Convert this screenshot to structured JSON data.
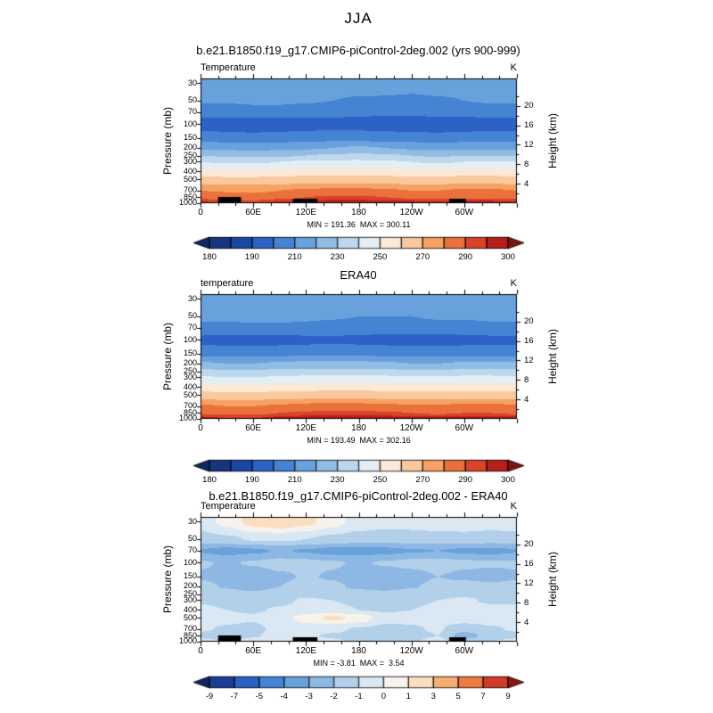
{
  "main_title": "JJA",
  "chart_data": [
    {
      "type": "heatmap",
      "title": "b.e21.B1850.f19_g17.CMIP6-piControl-2deg.002 (yrs 900-999)",
      "field_label": "Temperature",
      "units": "K",
      "ylabel_left": "Pressure (mb)",
      "ylabel_right": "Height (km)",
      "min": 191.36,
      "max": 300.11,
      "min_max_label": "MIN = 191.36  MAX = 300.11",
      "y_axis_range_mb": [
        1000,
        30
      ],
      "pressure_ticks_mb": [
        30,
        50,
        70,
        100,
        150,
        200,
        250,
        300,
        400,
        500,
        700,
        850,
        1000
      ],
      "height_ticks_km": [
        20,
        16,
        12,
        8,
        4
      ],
      "lon_tick_labels": [
        {
          "deg": 0,
          "label": "0"
        },
        {
          "deg": 60,
          "label": "60E"
        },
        {
          "deg": 120,
          "label": "120E"
        },
        {
          "deg": 180,
          "label": "180"
        },
        {
          "deg": 240,
          "label": "120W"
        },
        {
          "deg": 300,
          "label": "60W"
        }
      ],
      "colorbar": {
        "levels": [
          180,
          185,
          190,
          200,
          210,
          220,
          230,
          240,
          250,
          260,
          270,
          280,
          290,
          295,
          300
        ],
        "colors": [
          "#10265f",
          "#16357f",
          "#1c46a5",
          "#2c62c5",
          "#4583d3",
          "#68a1dc",
          "#92bce4",
          "#bdd7ec",
          "#e3eef5",
          "#fbe9d8",
          "#f9c99d",
          "#f5a263",
          "#ea713c",
          "#d8432a",
          "#b81f1c",
          "#7f1310"
        ],
        "tick_values": [
          180,
          190,
          210,
          230,
          250,
          270,
          290,
          300
        ],
        "tick_labels": [
          "180",
          "190",
          "210",
          "230",
          "250",
          "270",
          "290",
          "300"
        ]
      },
      "grid": {
        "lons_deg": [
          0,
          30,
          60,
          90,
          120,
          150,
          180,
          210,
          240,
          270,
          300,
          330,
          360
        ],
        "pressures_mb": [
          30,
          50,
          70,
          100,
          150,
          200,
          250,
          300,
          400,
          500,
          700,
          850,
          1000
        ],
        "values": [
          [
            216,
            217,
            218,
            218,
            217,
            216,
            215,
            214,
            214,
            215,
            215,
            216,
            216
          ],
          [
            211,
            211,
            212,
            212,
            211,
            210,
            209,
            209,
            208,
            209,
            210,
            211,
            211
          ],
          [
            204,
            204,
            205,
            205,
            204,
            203,
            202,
            202,
            202,
            203,
            203,
            204,
            204
          ],
          [
            195,
            194,
            193,
            194,
            195,
            196,
            195,
            194,
            193,
            193,
            194,
            195,
            195
          ],
          [
            206,
            205,
            204,
            205,
            206,
            207,
            207,
            206,
            205,
            204,
            205,
            206,
            206
          ],
          [
            219,
            218,
            217,
            218,
            219,
            220,
            221,
            220,
            219,
            218,
            219,
            219,
            219
          ],
          [
            230,
            229,
            228,
            229,
            230,
            231,
            232,
            231,
            230,
            229,
            230,
            230,
            230
          ],
          [
            240,
            239,
            239,
            240,
            241,
            242,
            242,
            241,
            240,
            239,
            240,
            240,
            240
          ],
          [
            253,
            252,
            252,
            253,
            254,
            255,
            255,
            254,
            253,
            253,
            254,
            254,
            253
          ],
          [
            263,
            262,
            262,
            263,
            264,
            265,
            265,
            264,
            263,
            263,
            264,
            264,
            263
          ],
          [
            280,
            279,
            278,
            280,
            281,
            282,
            282,
            281,
            280,
            280,
            281,
            281,
            280
          ],
          [
            288,
            287,
            286,
            288,
            290,
            291,
            291,
            290,
            289,
            288,
            289,
            289,
            288
          ],
          [
            296,
            294,
            293,
            296,
            298,
            299,
            299,
            298,
            297,
            296,
            297,
            297,
            296
          ]
        ]
      },
      "topography_lon_spans": [
        {
          "from": 20,
          "to": 46,
          "h": 7
        },
        {
          "from": 105,
          "to": 133,
          "h": 5
        },
        {
          "from": 283,
          "to": 302,
          "h": 5
        }
      ]
    },
    {
      "type": "heatmap",
      "title": "ERA40",
      "field_label": "temperature",
      "units": "K",
      "ylabel_left": "Pressure (mb)",
      "ylabel_right": "Height (km)",
      "min": 193.49,
      "max": 302.16,
      "min_max_label": "MIN = 193.49  MAX = 302.16",
      "y_axis_range_mb": [
        1000,
        30
      ],
      "pressure_ticks_mb": [
        30,
        50,
        70,
        100,
        150,
        200,
        250,
        300,
        400,
        500,
        700,
        850,
        1000
      ],
      "height_ticks_km": [
        20,
        16,
        12,
        8,
        4
      ],
      "lon_tick_labels": [
        {
          "deg": 0,
          "label": "0"
        },
        {
          "deg": 60,
          "label": "60E"
        },
        {
          "deg": 120,
          "label": "120E"
        },
        {
          "deg": 180,
          "label": "180"
        },
        {
          "deg": 240,
          "label": "120W"
        },
        {
          "deg": 300,
          "label": "60W"
        }
      ],
      "colorbar": {
        "levels": [
          180,
          185,
          190,
          200,
          210,
          220,
          230,
          240,
          250,
          260,
          270,
          280,
          290,
          295,
          300
        ],
        "colors": [
          "#10265f",
          "#16357f",
          "#1c46a5",
          "#2c62c5",
          "#4583d3",
          "#68a1dc",
          "#92bce4",
          "#bdd7ec",
          "#e3eef5",
          "#fbe9d8",
          "#f9c99d",
          "#f5a263",
          "#ea713c",
          "#d8432a",
          "#b81f1c",
          "#7f1310"
        ],
        "tick_values": [
          180,
          190,
          210,
          230,
          250,
          270,
          290,
          300
        ],
        "tick_labels": [
          "180",
          "190",
          "210",
          "230",
          "250",
          "270",
          "290",
          "300"
        ]
      },
      "grid": {
        "lons_deg": [
          0,
          30,
          60,
          90,
          120,
          150,
          180,
          210,
          240,
          270,
          300,
          330,
          360
        ],
        "pressures_mb": [
          30,
          50,
          70,
          100,
          150,
          200,
          250,
          300,
          400,
          500,
          700,
          850,
          1000
        ],
        "values": [
          [
            217,
            217,
            218,
            218,
            217,
            217,
            216,
            215,
            215,
            216,
            216,
            217,
            217
          ],
          [
            212,
            212,
            213,
            213,
            212,
            211,
            210,
            210,
            210,
            211,
            211,
            212,
            212
          ],
          [
            207,
            207,
            208,
            208,
            207,
            206,
            205,
            205,
            205,
            206,
            206,
            207,
            207
          ],
          [
            197,
            196,
            195,
            196,
            197,
            198,
            197,
            196,
            195,
            195,
            196,
            197,
            197
          ],
          [
            208,
            207,
            207,
            208,
            209,
            209,
            209,
            208,
            207,
            207,
            208,
            208,
            208
          ],
          [
            221,
            220,
            220,
            221,
            222,
            222,
            222,
            221,
            220,
            220,
            221,
            221,
            221
          ],
          [
            232,
            231,
            231,
            232,
            233,
            233,
            233,
            232,
            231,
            231,
            232,
            232,
            232
          ],
          [
            241,
            240,
            240,
            241,
            242,
            243,
            243,
            242,
            241,
            241,
            242,
            242,
            241
          ],
          [
            254,
            253,
            253,
            254,
            255,
            256,
            256,
            255,
            254,
            254,
            255,
            255,
            254
          ],
          [
            264,
            263,
            263,
            264,
            265,
            266,
            266,
            265,
            264,
            264,
            265,
            265,
            264
          ],
          [
            281,
            280,
            280,
            281,
            283,
            284,
            283,
            282,
            281,
            281,
            282,
            282,
            281
          ],
          [
            289,
            288,
            288,
            290,
            291,
            292,
            292,
            291,
            290,
            289,
            290,
            290,
            289
          ],
          [
            297,
            295,
            295,
            297,
            299,
            300,
            300,
            299,
            298,
            297,
            298,
            298,
            297
          ]
        ]
      },
      "topography_lon_spans": []
    },
    {
      "type": "heatmap",
      "title": "b.e21.B1850.f19_g17.CMIP6-piControl-2deg.002 - ERA40",
      "field_label": "Temperature",
      "units": "K",
      "ylabel_left": "Pressure (mb)",
      "ylabel_right": "Height (km)",
      "min": -3.81,
      "max": 3.54,
      "min_max_label": "MIN = -3.81  MAX =  3.54",
      "y_axis_range_mb": [
        1000,
        30
      ],
      "pressure_ticks_mb": [
        30,
        50,
        70,
        100,
        150,
        200,
        250,
        300,
        400,
        500,
        700,
        850,
        1000
      ],
      "height_ticks_km": [
        20,
        16,
        12,
        8,
        4
      ],
      "lon_tick_labels": [
        {
          "deg": 0,
          "label": "0"
        },
        {
          "deg": 60,
          "label": "60E"
        },
        {
          "deg": 120,
          "label": "120E"
        },
        {
          "deg": 180,
          "label": "180"
        },
        {
          "deg": 240,
          "label": "120W"
        },
        {
          "deg": 300,
          "label": "60W"
        }
      ],
      "colorbar": {
        "levels": [
          -9,
          -7,
          -5,
          -4,
          -3,
          -2,
          -1,
          0,
          1,
          3,
          5,
          7,
          9
        ],
        "colors": [
          "#10265f",
          "#1a3f97",
          "#2c62c5",
          "#4583d3",
          "#68a1dc",
          "#8cb8e3",
          "#b3d0ea",
          "#d9e8f3",
          "#f7f3ec",
          "#fbdec0",
          "#f7ad72",
          "#ec7a41",
          "#d23b27",
          "#8c1511"
        ],
        "tick_values": [
          -9,
          -7,
          -5,
          -4,
          -3,
          -2,
          -1,
          0,
          1,
          3,
          5,
          7,
          9
        ],
        "tick_labels": [
          "-9",
          "-7",
          "-5",
          "-4",
          "-3",
          "-2",
          "-1",
          "0",
          "1",
          "3",
          "5",
          "7",
          "9"
        ]
      },
      "grid": {
        "lons_deg": [
          0,
          30,
          60,
          90,
          120,
          150,
          180,
          210,
          240,
          270,
          300,
          330,
          360
        ],
        "pressures_mb": [
          30,
          50,
          70,
          100,
          150,
          200,
          250,
          300,
          400,
          500,
          700,
          850,
          1000
        ],
        "values": [
          [
            -0.5,
            0.3,
            1.4,
            1.8,
            1.3,
            0.4,
            -0.4,
            -0.6,
            -0.6,
            -0.5,
            -0.4,
            -0.5,
            -0.5
          ],
          [
            -1.4,
            -1.2,
            -0.9,
            -0.8,
            -1.0,
            -1.3,
            -1.5,
            -1.6,
            -1.5,
            -1.4,
            -1.4,
            -1.5,
            -1.4
          ],
          [
            -3.1,
            -3.4,
            -3.2,
            -2.9,
            -3.1,
            -3.4,
            -3.5,
            -3.3,
            -3.1,
            -3.0,
            -3.2,
            -3.3,
            -3.1
          ],
          [
            -1.9,
            -2.1,
            -1.9,
            -1.6,
            -1.7,
            -1.9,
            -2.1,
            -1.9,
            -1.7,
            -1.6,
            -1.8,
            -1.9,
            -1.9
          ],
          [
            -2.1,
            -2.4,
            -2.7,
            -2.2,
            -1.9,
            -2.1,
            -2.5,
            -2.7,
            -2.4,
            -2.0,
            -2.2,
            -2.3,
            -2.1
          ],
          [
            -1.7,
            -2.1,
            -2.4,
            -2.0,
            -1.6,
            -1.8,
            -2.2,
            -2.4,
            -2.1,
            -1.7,
            -1.6,
            -1.8,
            -1.7
          ],
          [
            -1.3,
            -1.6,
            -1.8,
            -1.5,
            -1.2,
            -1.3,
            -1.6,
            -1.7,
            -1.5,
            -1.2,
            -1.1,
            -1.3,
            -1.3
          ],
          [
            -1.1,
            -1.3,
            -1.4,
            -1.2,
            -0.9,
            -1.0,
            -1.2,
            -1.3,
            -1.2,
            -1.0,
            -0.9,
            -1.1,
            -1.1
          ],
          [
            -0.8,
            -1.0,
            -1.1,
            -0.9,
            -0.6,
            -0.7,
            -1.0,
            -1.1,
            -1.0,
            -0.8,
            -0.7,
            -0.8,
            -0.8
          ],
          [
            -0.6,
            -0.8,
            -0.9,
            -0.4,
            0.4,
            1.3,
            0.7,
            -0.6,
            -0.8,
            -0.6,
            -0.4,
            -0.6,
            -0.6
          ],
          [
            -0.9,
            -1.1,
            -1.2,
            -0.8,
            -0.5,
            -0.8,
            -1.1,
            -1.3,
            -1.1,
            -0.9,
            -1.6,
            -1.1,
            -0.9
          ],
          [
            -1.2,
            -1.5,
            -1.1,
            -0.6,
            -0.9,
            -1.1,
            -1.3,
            -1.6,
            -1.3,
            -1.0,
            -2.6,
            -1.5,
            -1.2
          ],
          [
            -0.8,
            -1.0,
            -0.7,
            -0.3,
            -0.6,
            -0.9,
            -1.1,
            -1.3,
            -1.1,
            -0.7,
            -1.6,
            -1.0,
            -0.8
          ]
        ]
      },
      "topography_lon_spans": [
        {
          "from": 20,
          "to": 46,
          "h": 7
        },
        {
          "from": 105,
          "to": 133,
          "h": 5
        },
        {
          "from": 283,
          "to": 302,
          "h": 5
        }
      ]
    }
  ]
}
